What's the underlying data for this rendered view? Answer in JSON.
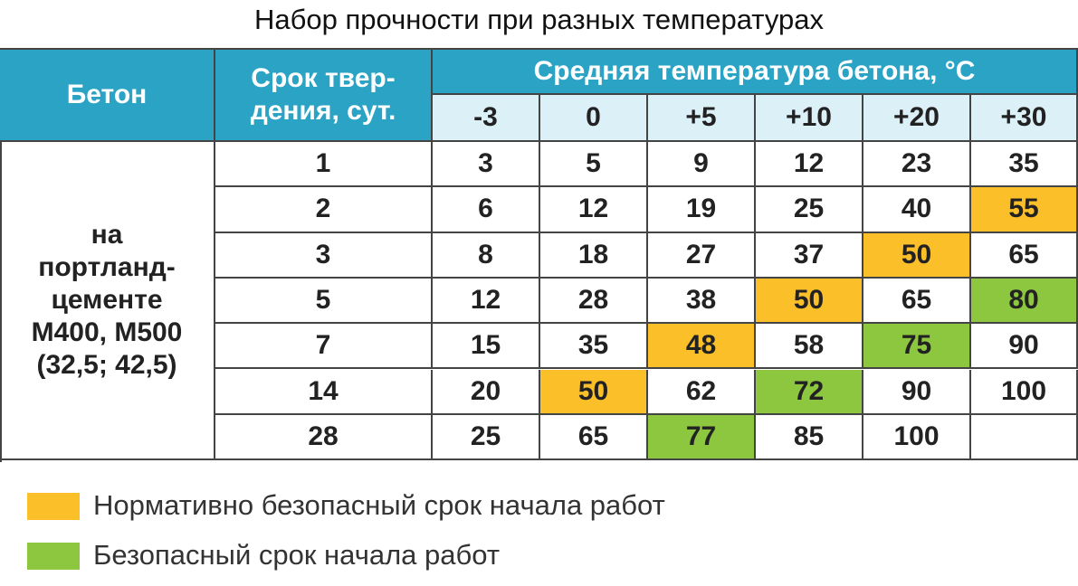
{
  "title": "Набор прочности при разных температурах",
  "table": {
    "header": {
      "concrete": "Бетон",
      "period": [
        "Срок твер-",
        "дения, сут."
      ],
      "temperature": "Средняя температура бетона, °C",
      "temps": [
        "-3",
        "0",
        "+5",
        "+10",
        "+20",
        "+30"
      ]
    },
    "concrete": [
      "на",
      "портланд-",
      "цементе",
      "М400, М500",
      "(32,5; 42,5)"
    ],
    "rows": [
      {
        "days": 1,
        "values": [
          3,
          5,
          9,
          12,
          23,
          35
        ],
        "fills": [
          null,
          null,
          null,
          null,
          null,
          null
        ]
      },
      {
        "days": 2,
        "values": [
          6,
          12,
          19,
          25,
          40,
          55
        ],
        "fills": [
          null,
          null,
          null,
          null,
          null,
          "#fbbf2a"
        ]
      },
      {
        "days": 3,
        "values": [
          8,
          18,
          27,
          37,
          50,
          65
        ],
        "fills": [
          null,
          null,
          null,
          null,
          "#fbbf2a",
          null
        ]
      },
      {
        "days": 5,
        "values": [
          12,
          28,
          38,
          50,
          65,
          80
        ],
        "fills": [
          null,
          null,
          null,
          "#fbbf2a",
          null,
          "#8dc63f"
        ]
      },
      {
        "days": 7,
        "values": [
          15,
          35,
          48,
          58,
          75,
          90
        ],
        "fills": [
          null,
          null,
          "#fbbf2a",
          null,
          "#8dc63f",
          null
        ]
      },
      {
        "days": 14,
        "values": [
          20,
          50,
          62,
          72,
          90,
          100
        ],
        "fills": [
          null,
          "#fbbf2a",
          null,
          "#8dc63f",
          null,
          null
        ]
      },
      {
        "days": 28,
        "values": [
          25,
          65,
          77,
          85,
          100,
          null
        ],
        "fills": [
          null,
          null,
          "#8dc63f",
          null,
          null,
          null
        ]
      }
    ]
  },
  "legend": [
    {
      "color": "#fbbf2a",
      "label": "Нормативно безопасный срок начала работ"
    },
    {
      "color": "#8dc63f",
      "label": "Безопасный срок начала работ"
    }
  ]
}
